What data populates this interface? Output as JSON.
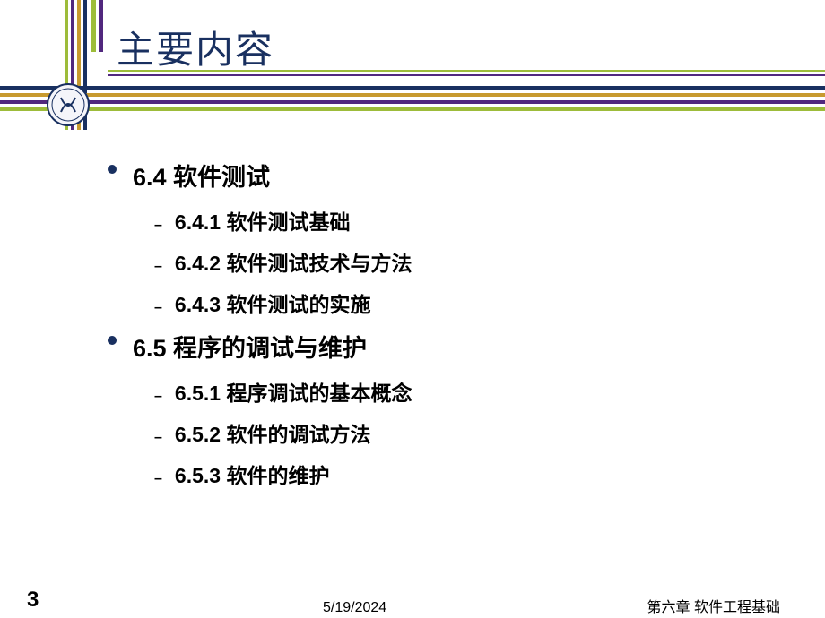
{
  "colors": {
    "green": "#9dbc3a",
    "purple": "#51287e",
    "gold": "#c89a2e",
    "navy": "#193060",
    "title": "#193060",
    "bullet": "#193060",
    "text_main": "#000000",
    "text_sub": "#000000",
    "dash": "#000000"
  },
  "title": "主要内容",
  "sections": [
    {
      "heading": "6.4 软件测试",
      "items": [
        "6.4.1 软件测试基础",
        "6.4.2 软件测试技术与方法",
        "6.4.3 软件测试的实施"
      ]
    },
    {
      "heading": "6.5 程序的调试与维护",
      "items": [
        "6.5.1 程序调试的基本概念",
        "6.5.2 软件的调试方法",
        "6.5.3 软件的维护"
      ]
    }
  ],
  "pageNumber": "3",
  "footerDate": "5/19/2024",
  "footerRight": "第六章 软件工程基础"
}
